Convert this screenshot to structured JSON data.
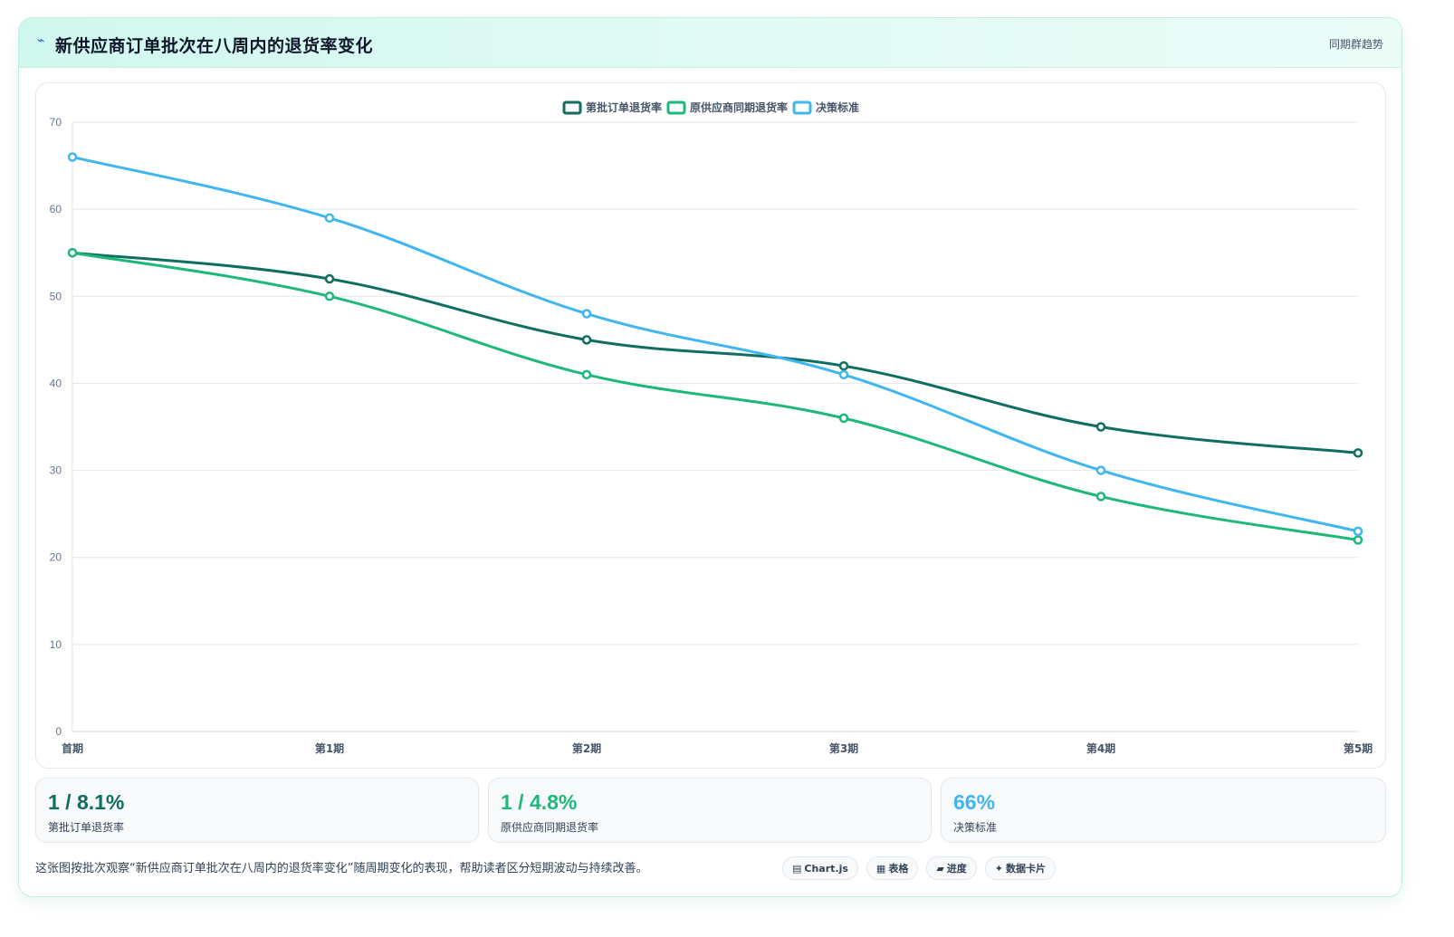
{
  "header": {
    "icon": "lightning-icon",
    "title": "新供应商订单批次在八周内的退货率变化",
    "badge": "同期群趋势"
  },
  "chart_data": {
    "type": "line",
    "categories": [
      "首期",
      "第1期",
      "第2期",
      "第3期",
      "第4期",
      "第5期"
    ],
    "series": [
      {
        "name": "第批订单退货率",
        "values": [
          55,
          52,
          45,
          42,
          35,
          32
        ],
        "color": "#0f6e5f"
      },
      {
        "name": "原供应商同期退货率",
        "values": [
          55,
          50,
          41,
          36,
          27,
          22
        ],
        "color": "#1db87a"
      },
      {
        "name": "决策标准",
        "values": [
          66,
          59,
          48,
          41,
          30,
          23
        ],
        "color": "#3fb6ef"
      }
    ],
    "ylim": [
      0,
      70
    ],
    "yticks": [
      0,
      10,
      20,
      30,
      40,
      50,
      60,
      70
    ],
    "grid": true,
    "legend": "top-center",
    "curve": "smooth"
  },
  "stats": [
    {
      "value": "1 / 8.1%",
      "label": "第批订单退货率",
      "color": "#0f6e5f"
    },
    {
      "value": "1 / 4.8%",
      "label": "原供应商同期退货率",
      "color": "#1db87a"
    },
    {
      "value": "66%",
      "label": "决策标准",
      "color": "#3fb6ef"
    }
  ],
  "note": "这张图按批次观察“新供应商订单批次在八周内的退货率变化”随周期变化的表现，帮助读者区分短期波动与持续改善。",
  "tags": [
    {
      "icon": "chart-icon",
      "glyph": "▤",
      "label": "Chart.js"
    },
    {
      "icon": "table-icon",
      "glyph": "▦",
      "label": "表格"
    },
    {
      "icon": "progress-icon",
      "glyph": "▰",
      "label": "进度"
    },
    {
      "icon": "sparkle-icon",
      "glyph": "✦",
      "label": "数据卡片"
    }
  ]
}
